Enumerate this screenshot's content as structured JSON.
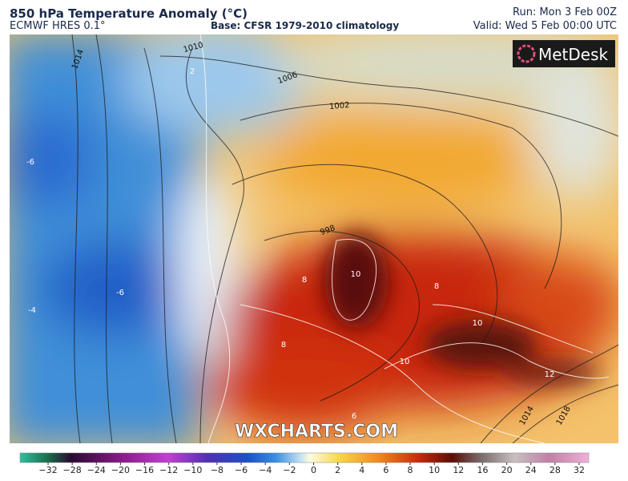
{
  "header": {
    "title": "850 hPa Temperature Anomaly (°C)",
    "model": "ECMWF HRES 0.1°",
    "base": "Base: CFSR 1979-2010 climatology",
    "run": "Run: Mon 3 Feb 00Z",
    "valid": "Valid: Wed 5 Feb 00:00 UTC"
  },
  "logo": "MetDesk",
  "watermark": "WXCHARTS.COM",
  "map_labels": [
    "1014",
    "1010",
    "1006",
    "1002",
    "998",
    "-6",
    "-4",
    "-6",
    "2",
    "8",
    "10",
    "10",
    "10",
    "12",
    "8",
    "8",
    "6",
    "1014",
    "1018"
  ],
  "colorbar": {
    "ticks": [
      {
        "value": -32,
        "label": "−32"
      },
      {
        "value": -28,
        "label": "−28"
      },
      {
        "value": -24,
        "label": "−24"
      },
      {
        "value": -20,
        "label": "−20"
      },
      {
        "value": -16,
        "label": "−16"
      },
      {
        "value": -12,
        "label": "−12"
      },
      {
        "value": -10,
        "label": "−10"
      },
      {
        "value": -8,
        "label": "−8"
      },
      {
        "value": -6,
        "label": "−6"
      },
      {
        "value": -4,
        "label": "−4"
      },
      {
        "value": -2,
        "label": "−2"
      },
      0,
      2,
      4,
      6,
      8,
      10,
      12,
      16,
      20,
      24,
      28,
      32
    ]
  }
}
